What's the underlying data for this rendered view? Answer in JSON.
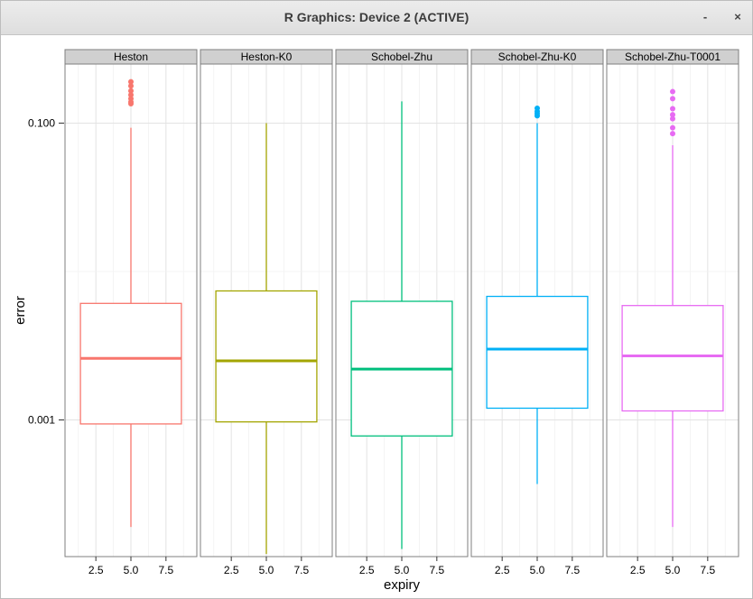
{
  "window": {
    "title": "R Graphics: Device 2 (ACTIVE)",
    "minimize_label": "-",
    "close_label": "×"
  },
  "chart_data": {
    "type": "box",
    "xlabel": "expiry",
    "ylabel": "error",
    "yscale": "log10",
    "ylim": [
      0.00012,
      0.25
    ],
    "xlim": [
      0.3,
      9.7
    ],
    "x_ticks": [
      2.5,
      5.0,
      7.5
    ],
    "x_tick_labels": [
      "2.5",
      "5.0",
      "7.5"
    ],
    "y_ticks": [
      0.1,
      0.001
    ],
    "y_tick_labels": [
      "0.100",
      "0.001"
    ],
    "grid": true,
    "panels": [
      {
        "name": "Heston",
        "color": "#F8766D",
        "x": 5.0,
        "whisker_low": 0.00019,
        "q1": 0.00094,
        "median": 0.0026,
        "q3": 0.0061,
        "whisker_high": 0.093,
        "outliers": [
          0.19,
          0.178,
          0.165,
          0.155,
          0.146,
          0.139,
          0.135
        ]
      },
      {
        "name": "Heston-K0",
        "color": "#A3A500",
        "x": 5.0,
        "whisker_low": 0.000125,
        "q1": 0.00097,
        "median": 0.0025,
        "q3": 0.0074,
        "whisker_high": 0.1,
        "outliers": []
      },
      {
        "name": "Schobel-Zhu",
        "color": "#00BF7D",
        "x": 5.0,
        "whisker_low": 0.000135,
        "q1": 0.00078,
        "median": 0.0022,
        "q3": 0.0063,
        "whisker_high": 0.14,
        "outliers": []
      },
      {
        "name": "Schobel-Zhu-K0",
        "color": "#00B0F6",
        "x": 5.0,
        "whisker_low": 0.00037,
        "q1": 0.0012,
        "median": 0.003,
        "q3": 0.0068,
        "whisker_high": 0.1,
        "outliers": [
          0.126,
          0.12,
          0.116,
          0.112
        ]
      },
      {
        "name": "Schobel-Zhu-T0001",
        "color": "#E76BF3",
        "x": 5.0,
        "whisker_low": 0.00019,
        "q1": 0.00115,
        "median": 0.0027,
        "q3": 0.0059,
        "whisker_high": 0.071,
        "outliers": [
          0.163,
          0.146,
          0.125,
          0.114,
          0.107,
          0.093,
          0.085
        ]
      }
    ]
  }
}
